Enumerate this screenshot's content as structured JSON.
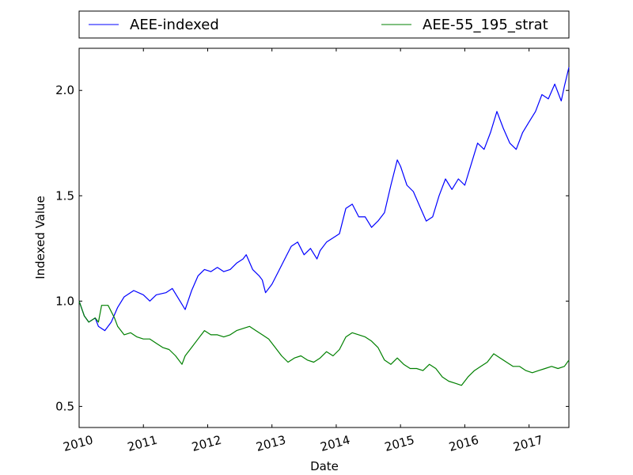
{
  "chart_data": {
    "type": "line",
    "title": "",
    "xlabel": "Date",
    "ylabel": "Indexed Value",
    "xlim": [
      2010.0,
      2017.62
    ],
    "ylim": [
      0.4,
      2.2
    ],
    "x_ticks": [
      "2010",
      "2011",
      "2012",
      "2013",
      "2014",
      "2015",
      "2016",
      "2017"
    ],
    "y_ticks": [
      "0.5",
      "1.0",
      "1.5",
      "2.0"
    ],
    "legend_position": "top, above plot",
    "grid": false,
    "series": [
      {
        "name": "AEE-indexed",
        "color": "#0000ff",
        "points": [
          [
            2010.0,
            1.0
          ],
          [
            2010.08,
            0.93
          ],
          [
            2010.15,
            0.9
          ],
          [
            2010.25,
            0.92
          ],
          [
            2010.3,
            0.88
          ],
          [
            2010.4,
            0.86
          ],
          [
            2010.5,
            0.9
          ],
          [
            2010.6,
            0.97
          ],
          [
            2010.7,
            1.02
          ],
          [
            2010.85,
            1.05
          ],
          [
            2011.0,
            1.03
          ],
          [
            2011.1,
            1.0
          ],
          [
            2011.2,
            1.03
          ],
          [
            2011.35,
            1.04
          ],
          [
            2011.45,
            1.06
          ],
          [
            2011.55,
            1.01
          ],
          [
            2011.65,
            0.96
          ],
          [
            2011.75,
            1.05
          ],
          [
            2011.85,
            1.12
          ],
          [
            2011.95,
            1.15
          ],
          [
            2012.05,
            1.14
          ],
          [
            2012.15,
            1.16
          ],
          [
            2012.25,
            1.14
          ],
          [
            2012.35,
            1.15
          ],
          [
            2012.45,
            1.18
          ],
          [
            2012.55,
            1.2
          ],
          [
            2012.6,
            1.22
          ],
          [
            2012.7,
            1.15
          ],
          [
            2012.8,
            1.12
          ],
          [
            2012.85,
            1.1
          ],
          [
            2012.9,
            1.04
          ],
          [
            2013.0,
            1.08
          ],
          [
            2013.1,
            1.14
          ],
          [
            2013.2,
            1.2
          ],
          [
            2013.3,
            1.26
          ],
          [
            2013.4,
            1.28
          ],
          [
            2013.5,
            1.22
          ],
          [
            2013.6,
            1.25
          ],
          [
            2013.7,
            1.2
          ],
          [
            2013.75,
            1.24
          ],
          [
            2013.85,
            1.28
          ],
          [
            2013.95,
            1.3
          ],
          [
            2014.05,
            1.32
          ],
          [
            2014.15,
            1.44
          ],
          [
            2014.25,
            1.46
          ],
          [
            2014.35,
            1.4
          ],
          [
            2014.45,
            1.4
          ],
          [
            2014.55,
            1.35
          ],
          [
            2014.65,
            1.38
          ],
          [
            2014.75,
            1.42
          ],
          [
            2014.85,
            1.55
          ],
          [
            2014.95,
            1.67
          ],
          [
            2015.0,
            1.64
          ],
          [
            2015.1,
            1.55
          ],
          [
            2015.2,
            1.52
          ],
          [
            2015.3,
            1.45
          ],
          [
            2015.4,
            1.38
          ],
          [
            2015.5,
            1.4
          ],
          [
            2015.6,
            1.5
          ],
          [
            2015.7,
            1.58
          ],
          [
            2015.8,
            1.53
          ],
          [
            2015.9,
            1.58
          ],
          [
            2016.0,
            1.55
          ],
          [
            2016.1,
            1.65
          ],
          [
            2016.2,
            1.75
          ],
          [
            2016.3,
            1.72
          ],
          [
            2016.4,
            1.8
          ],
          [
            2016.5,
            1.9
          ],
          [
            2016.6,
            1.82
          ],
          [
            2016.7,
            1.75
          ],
          [
            2016.8,
            1.72
          ],
          [
            2016.9,
            1.8
          ],
          [
            2017.0,
            1.85
          ],
          [
            2017.1,
            1.9
          ],
          [
            2017.2,
            1.98
          ],
          [
            2017.3,
            1.96
          ],
          [
            2017.4,
            2.03
          ],
          [
            2017.5,
            1.95
          ],
          [
            2017.55,
            2.02
          ],
          [
            2017.62,
            2.11
          ]
        ]
      },
      {
        "name": "AEE-55_195_strat",
        "color": "#008000",
        "points": [
          [
            2010.0,
            1.0
          ],
          [
            2010.08,
            0.93
          ],
          [
            2010.15,
            0.9
          ],
          [
            2010.25,
            0.92
          ],
          [
            2010.3,
            0.9
          ],
          [
            2010.35,
            0.98
          ],
          [
            2010.45,
            0.98
          ],
          [
            2010.55,
            0.92
          ],
          [
            2010.6,
            0.88
          ],
          [
            2010.7,
            0.84
          ],
          [
            2010.8,
            0.85
          ],
          [
            2010.9,
            0.83
          ],
          [
            2011.0,
            0.82
          ],
          [
            2011.1,
            0.82
          ],
          [
            2011.2,
            0.8
          ],
          [
            2011.3,
            0.78
          ],
          [
            2011.4,
            0.77
          ],
          [
            2011.5,
            0.74
          ],
          [
            2011.6,
            0.7
          ],
          [
            2011.65,
            0.74
          ],
          [
            2011.75,
            0.78
          ],
          [
            2011.85,
            0.82
          ],
          [
            2011.95,
            0.86
          ],
          [
            2012.05,
            0.84
          ],
          [
            2012.15,
            0.84
          ],
          [
            2012.25,
            0.83
          ],
          [
            2012.35,
            0.84
          ],
          [
            2012.45,
            0.86
          ],
          [
            2012.55,
            0.87
          ],
          [
            2012.65,
            0.88
          ],
          [
            2012.75,
            0.86
          ],
          [
            2012.85,
            0.84
          ],
          [
            2012.95,
            0.82
          ],
          [
            2013.05,
            0.78
          ],
          [
            2013.15,
            0.74
          ],
          [
            2013.25,
            0.71
          ],
          [
            2013.35,
            0.73
          ],
          [
            2013.45,
            0.74
          ],
          [
            2013.55,
            0.72
          ],
          [
            2013.65,
            0.71
          ],
          [
            2013.75,
            0.73
          ],
          [
            2013.85,
            0.76
          ],
          [
            2013.95,
            0.74
          ],
          [
            2014.05,
            0.77
          ],
          [
            2014.15,
            0.83
          ],
          [
            2014.25,
            0.85
          ],
          [
            2014.35,
            0.84
          ],
          [
            2014.45,
            0.83
          ],
          [
            2014.55,
            0.81
          ],
          [
            2014.65,
            0.78
          ],
          [
            2014.75,
            0.72
          ],
          [
            2014.85,
            0.7
          ],
          [
            2014.95,
            0.73
          ],
          [
            2015.05,
            0.7
          ],
          [
            2015.15,
            0.68
          ],
          [
            2015.25,
            0.68
          ],
          [
            2015.35,
            0.67
          ],
          [
            2015.45,
            0.7
          ],
          [
            2015.55,
            0.68
          ],
          [
            2015.65,
            0.64
          ],
          [
            2015.75,
            0.62
          ],
          [
            2015.85,
            0.61
          ],
          [
            2015.95,
            0.6
          ],
          [
            2016.05,
            0.64
          ],
          [
            2016.15,
            0.67
          ],
          [
            2016.25,
            0.69
          ],
          [
            2016.35,
            0.71
          ],
          [
            2016.45,
            0.75
          ],
          [
            2016.55,
            0.73
          ],
          [
            2016.65,
            0.71
          ],
          [
            2016.75,
            0.69
          ],
          [
            2016.85,
            0.69
          ],
          [
            2016.95,
            0.67
          ],
          [
            2017.05,
            0.66
          ],
          [
            2017.15,
            0.67
          ],
          [
            2017.25,
            0.68
          ],
          [
            2017.35,
            0.69
          ],
          [
            2017.45,
            0.68
          ],
          [
            2017.55,
            0.69
          ],
          [
            2017.62,
            0.72
          ]
        ]
      }
    ]
  }
}
